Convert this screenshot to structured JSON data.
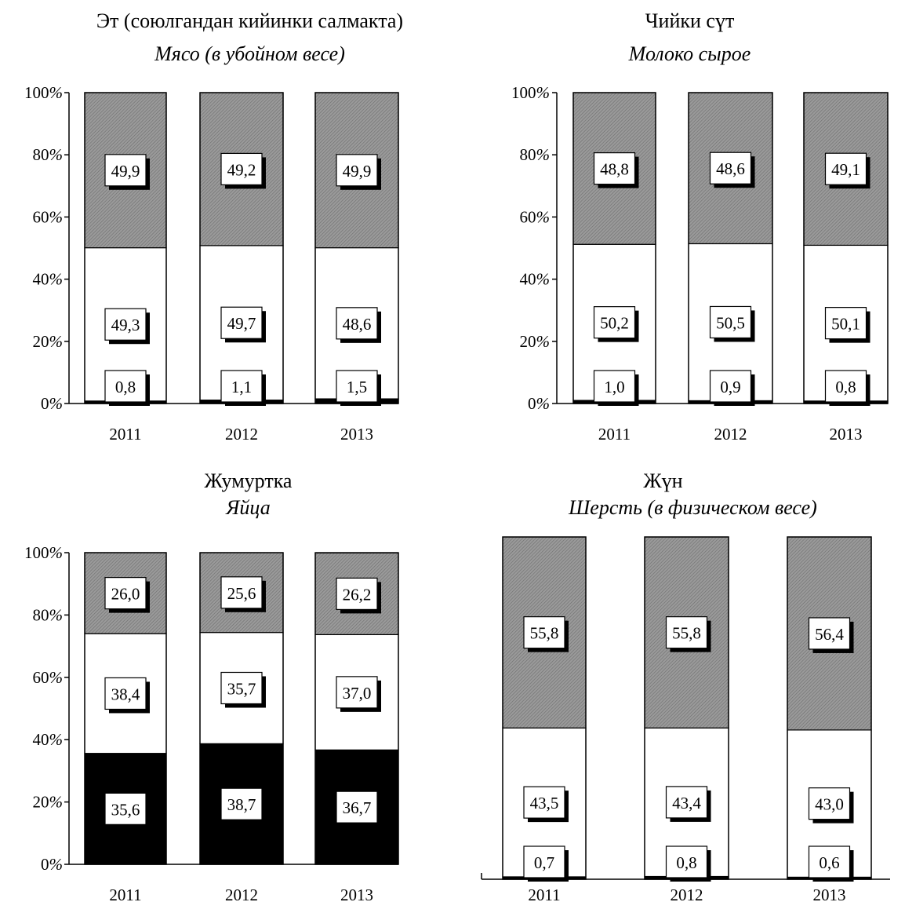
{
  "colors": {
    "gray_fill": "#8c8c8c",
    "white_fill": "#ffffff",
    "black_fill": "#000000",
    "label_bg": "#ffffff",
    "label_shadow": "#000000"
  },
  "chart_data": [
    {
      "type": "bar",
      "stacked": true,
      "title": "Эт (союлгандан кийинки салмакта)",
      "subtitle": "Мясо (в убойном весе)",
      "categories": [
        "2011",
        "2012",
        "2013"
      ],
      "y_axis": true,
      "ylim": [
        0,
        100
      ],
      "yticks": [
        "0%",
        "20%",
        "40%",
        "60%",
        "80%",
        "100%"
      ],
      "series": [
        {
          "fill": "black",
          "values": [
            0.8,
            1.1,
            1.5
          ],
          "labels": [
            "0,8",
            "1,1",
            "1,5"
          ]
        },
        {
          "fill": "white",
          "values": [
            49.3,
            49.7,
            48.6
          ],
          "labels": [
            "49,3",
            "49,7",
            "48,6"
          ]
        },
        {
          "fill": "gray",
          "values": [
            49.9,
            49.2,
            49.9
          ],
          "labels": [
            "49,9",
            "49,2",
            "49,9"
          ]
        }
      ]
    },
    {
      "type": "bar",
      "stacked": true,
      "title": "Чийки сүт",
      "subtitle": "Молоко сырое",
      "categories": [
        "2011",
        "2012",
        "2013"
      ],
      "y_axis": true,
      "ylim": [
        0,
        100
      ],
      "yticks": [
        "0%",
        "20%",
        "40%",
        "60%",
        "80%",
        "100%"
      ],
      "series": [
        {
          "fill": "black",
          "values": [
            1.0,
            0.9,
            0.8
          ],
          "labels": [
            "1,0",
            "0,9",
            "0,8"
          ]
        },
        {
          "fill": "white",
          "values": [
            50.2,
            50.5,
            50.1
          ],
          "labels": [
            "50,2",
            "50,5",
            "50,1"
          ]
        },
        {
          "fill": "gray",
          "values": [
            48.8,
            48.6,
            49.1
          ],
          "labels": [
            "48,8",
            "48,6",
            "49,1"
          ]
        }
      ]
    },
    {
      "type": "bar",
      "stacked": true,
      "title": "Жумуртка",
      "subtitle": "Яйца",
      "categories": [
        "2011",
        "2012",
        "2013"
      ],
      "y_axis": true,
      "ylim": [
        0,
        100
      ],
      "yticks": [
        "0%",
        "20%",
        "40%",
        "60%",
        "80%",
        "100%"
      ],
      "series": [
        {
          "fill": "black",
          "values": [
            35.6,
            38.7,
            36.7
          ],
          "labels": [
            "35,6",
            "38,7",
            "36,7"
          ]
        },
        {
          "fill": "white",
          "values": [
            38.4,
            35.7,
            37.0
          ],
          "labels": [
            "38,4",
            "35,7",
            "37,0"
          ]
        },
        {
          "fill": "gray",
          "values": [
            26.0,
            25.6,
            26.2
          ],
          "labels": [
            "26,0",
            "25,6",
            "26,2"
          ]
        }
      ]
    },
    {
      "type": "bar",
      "stacked": true,
      "title": "Жүн",
      "subtitle": "Шерсть (в физическом весе)",
      "categories": [
        "2011",
        "2012",
        "2013"
      ],
      "y_axis": false,
      "ylim": [
        0,
        100
      ],
      "yticks": [],
      "series": [
        {
          "fill": "black",
          "values": [
            0.7,
            0.8,
            0.6
          ],
          "labels": [
            "0,7",
            "0,8",
            "0,6"
          ]
        },
        {
          "fill": "white",
          "values": [
            43.5,
            43.4,
            43.0
          ],
          "labels": [
            "43,5",
            "43,4",
            "43,0"
          ]
        },
        {
          "fill": "gray",
          "values": [
            55.8,
            55.8,
            56.4
          ],
          "labels": [
            "55,8",
            "55,8",
            "56,4"
          ]
        }
      ]
    }
  ]
}
